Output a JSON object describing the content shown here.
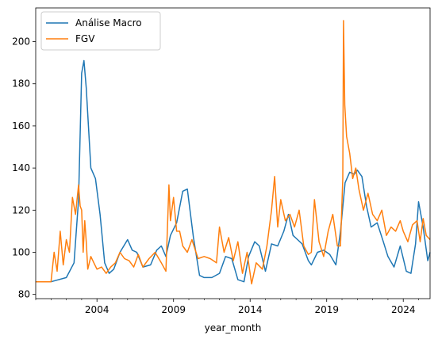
{
  "chart_data": {
    "type": "line",
    "title": "",
    "xlabel": "year_month",
    "ylabel": "",
    "xlim": [
      2000.0,
      2025.75
    ],
    "ylim": [
      78,
      216
    ],
    "x_ticks": [
      2004,
      2009,
      2014,
      2019,
      2024
    ],
    "x_tick_labels": [
      "2004",
      "2009",
      "2014",
      "2019",
      "2024"
    ],
    "y_ticks": [
      80,
      100,
      120,
      140,
      160,
      180,
      200
    ],
    "y_tick_labels": [
      "80",
      "100",
      "120",
      "140",
      "160",
      "180",
      "200"
    ],
    "legend": {
      "position": "top-left"
    },
    "series": [
      {
        "name": "Análise Macro",
        "color": "#1f77b4",
        "x": [
          2000.0,
          2001.0,
          2002.0,
          2002.5,
          2002.8,
          2003.0,
          2003.15,
          2003.3,
          2003.6,
          2003.9,
          2004.2,
          2004.5,
          2004.8,
          2005.1,
          2005.5,
          2006.0,
          2006.3,
          2006.6,
          2007.0,
          2007.5,
          2007.9,
          2008.2,
          2008.5,
          2008.8,
          2009.2,
          2009.6,
          2009.9,
          2010.3,
          2010.7,
          2011.0,
          2011.5,
          2012.0,
          2012.4,
          2012.8,
          2013.2,
          2013.6,
          2013.9,
          2014.3,
          2014.6,
          2015.0,
          2015.4,
          2015.8,
          2016.2,
          2016.5,
          2016.8,
          2017.1,
          2017.4,
          2017.8,
          2018.0,
          2018.4,
          2018.8,
          2019.2,
          2019.6,
          2019.9,
          2020.2,
          2020.5,
          2020.8,
          2021.0,
          2021.3,
          2021.6,
          2021.9,
          2022.3,
          2022.7,
          2023.0,
          2023.4,
          2023.8,
          2024.2,
          2024.5,
          2024.8,
          2025.0,
          2025.3,
          2025.6,
          2025.75
        ],
        "values": [
          86,
          86,
          88,
          95,
          125,
          185,
          191,
          178,
          140,
          135,
          118,
          95,
          90,
          92,
          100,
          106,
          101,
          100,
          93,
          94,
          101,
          103,
          98,
          108,
          114,
          129,
          130,
          107,
          89,
          88,
          88,
          90,
          98,
          97,
          87,
          86,
          98,
          105,
          103,
          91,
          104,
          103,
          110,
          118,
          108,
          106,
          104,
          96,
          94,
          100,
          101,
          99,
          94,
          110,
          133,
          138,
          137,
          139,
          136,
          122,
          112,
          114,
          105,
          98,
          93,
          103,
          91,
          90,
          104,
          124,
          112,
          96,
          100
        ]
      },
      {
        "name": "FGV",
        "color": "#ff7f0e",
        "x": [
          2000.0,
          2000.6,
          2001.0,
          2001.2,
          2001.4,
          2001.6,
          2001.8,
          2002.0,
          2002.2,
          2002.4,
          2002.6,
          2002.8,
          2002.9,
          2003.0,
          2003.1,
          2003.2,
          2003.3,
          2003.4,
          2003.6,
          2003.8,
          2004.0,
          2004.3,
          2004.6,
          2004.9,
          2005.2,
          2005.5,
          2005.8,
          2006.1,
          2006.4,
          2006.7,
          2007.0,
          2007.4,
          2007.8,
          2008.2,
          2008.5,
          2008.7,
          2008.8,
          2009.0,
          2009.2,
          2009.4,
          2009.6,
          2009.9,
          2010.2,
          2010.6,
          2011.0,
          2011.4,
          2011.8,
          2012.0,
          2012.3,
          2012.6,
          2012.9,
          2013.2,
          2013.5,
          2013.8,
          2014.1,
          2014.4,
          2014.8,
          2015.1,
          2015.4,
          2015.6,
          2015.8,
          2016.0,
          2016.3,
          2016.6,
          2016.9,
          2017.2,
          2017.5,
          2017.8,
          2018.0,
          2018.2,
          2018.5,
          2018.8,
          2019.1,
          2019.4,
          2019.7,
          2019.9,
          2020.05,
          2020.1,
          2020.18,
          2020.3,
          2020.5,
          2020.7,
          2020.9,
          2021.1,
          2021.4,
          2021.7,
          2022.0,
          2022.3,
          2022.6,
          2022.9,
          2023.2,
          2023.5,
          2023.8,
          2024.0,
          2024.3,
          2024.6,
          2024.9,
          2025.1,
          2025.3,
          2025.5,
          2025.75
        ],
        "values": [
          86,
          86,
          86,
          100,
          91,
          110,
          94,
          106,
          100,
          126,
          118,
          132,
          122,
          120,
          100,
          115,
          105,
          92,
          98,
          95,
          92,
          93,
          90,
          93,
          95,
          100,
          97,
          96,
          93,
          99,
          93,
          97,
          100,
          95,
          91,
          132,
          115,
          126,
          110,
          110,
          103,
          100,
          106,
          97,
          98,
          97,
          95,
          112,
          100,
          107,
          96,
          105,
          90,
          100,
          85,
          95,
          92,
          103,
          120,
          136,
          112,
          125,
          115,
          118,
          112,
          120,
          103,
          99,
          100,
          125,
          105,
          98,
          110,
          118,
          103,
          103,
          135,
          210,
          170,
          155,
          147,
          135,
          140,
          130,
          120,
          128,
          118,
          115,
          120,
          108,
          112,
          110,
          115,
          110,
          105,
          113,
          115,
          105,
          116,
          108,
          106
        ]
      }
    ]
  }
}
